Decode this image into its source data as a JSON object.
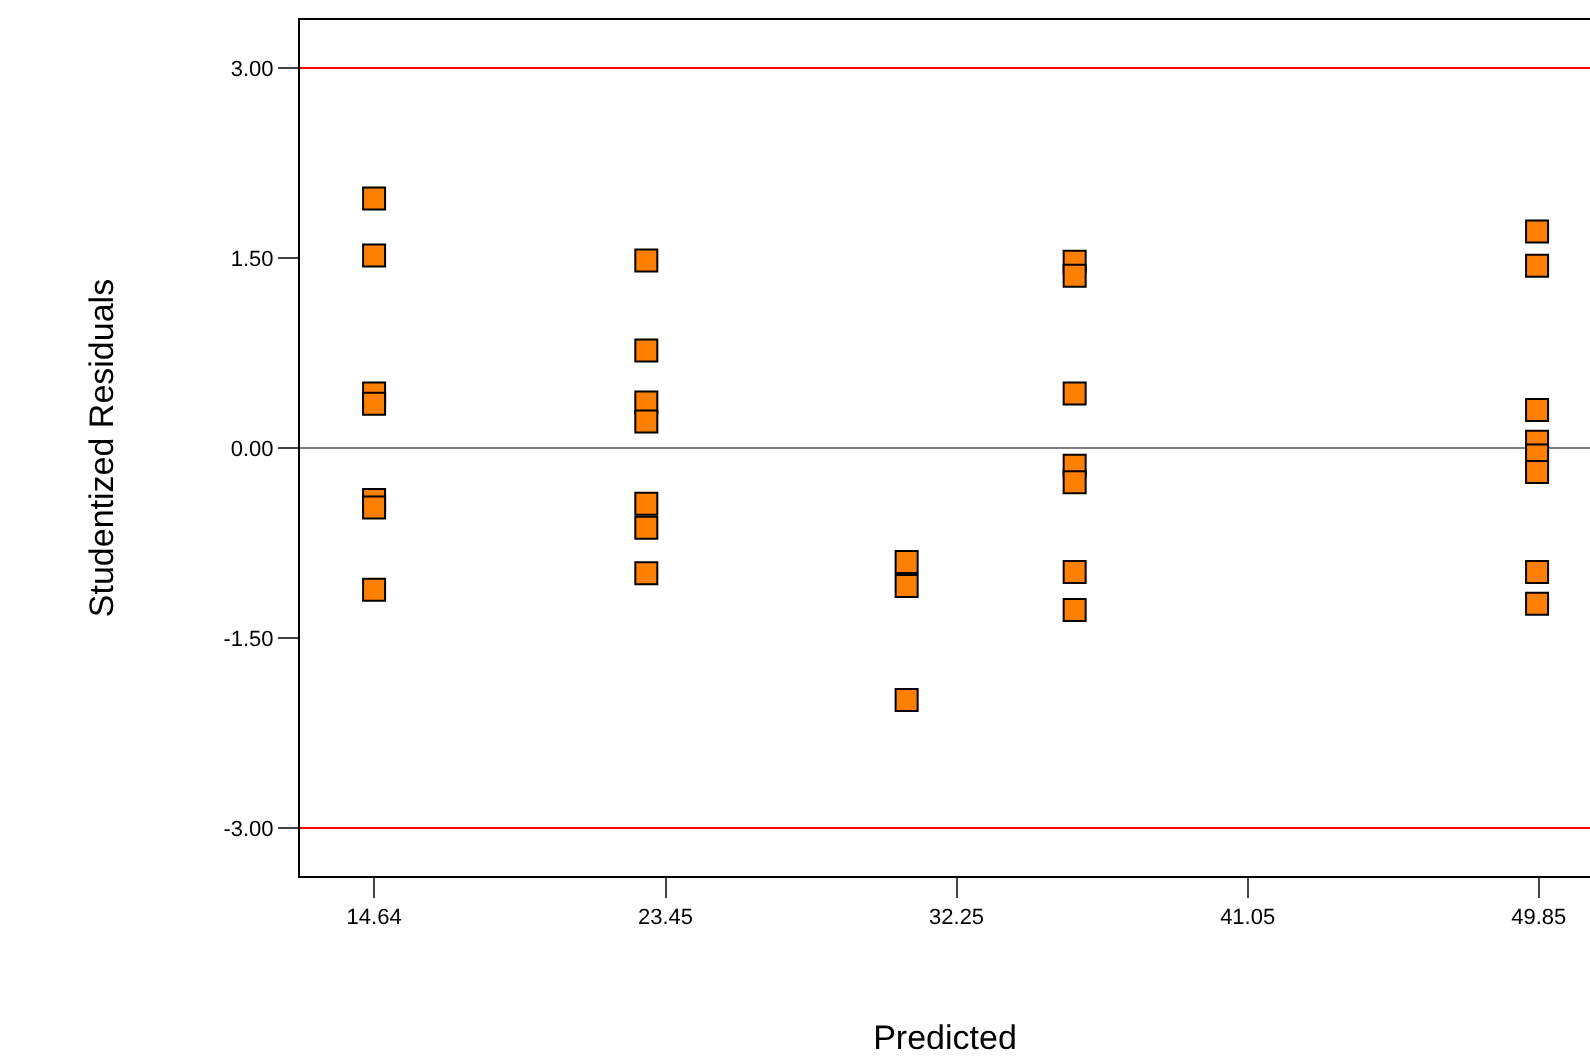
{
  "chart_data": {
    "type": "scatter",
    "xlabel": "Predicted",
    "ylabel": "Studentized Residuals",
    "series": [
      {
        "color": "#ff8000",
        "x": [
          14.64,
          14.64,
          14.64,
          14.64,
          14.64,
          14.64,
          14.64,
          22.87,
          22.87,
          22.87,
          22.87,
          22.87,
          22.87,
          22.87,
          30.74,
          30.74,
          30.74,
          35.82,
          35.82,
          35.82,
          35.82,
          35.82,
          35.82,
          35.82,
          49.8,
          49.8,
          49.8,
          49.8,
          49.8,
          49.8,
          49.8,
          49.8
        ],
        "values": [
          1.97,
          1.52,
          0.43,
          0.35,
          -0.41,
          -0.47,
          -1.12,
          1.48,
          0.77,
          0.36,
          0.21,
          -0.44,
          -0.63,
          -0.99,
          -0.9,
          -1.09,
          -1.99,
          1.47,
          1.36,
          0.43,
          -0.14,
          -0.27,
          -0.98,
          -1.28,
          1.71,
          1.44,
          0.3,
          0.05,
          -0.06,
          -0.19,
          -0.98,
          -1.23
        ]
      }
    ],
    "xlim": [
      12.4,
      51.4
    ],
    "xticks": [
      14.64,
      23.45,
      32.25,
      41.05,
      49.85
    ],
    "ylim": [
      -3.38,
      3.38
    ],
    "yticks": [
      {
        "value": 3,
        "label": "3.00"
      },
      {
        "value": 1.5,
        "label": "1.50"
      },
      {
        "value": 0,
        "label": "0.00"
      },
      {
        "value": -1.5,
        "label": "-1.50"
      },
      {
        "value": -3,
        "label": "-3.00"
      }
    ],
    "ref_lines": [
      {
        "axis": "y",
        "value": 3,
        "color": "#ff0000"
      },
      {
        "axis": "y",
        "value": 0,
        "color": "#808080"
      },
      {
        "axis": "y",
        "value": -3,
        "color": "#ff0000"
      }
    ],
    "marker": "square",
    "grid": false
  }
}
